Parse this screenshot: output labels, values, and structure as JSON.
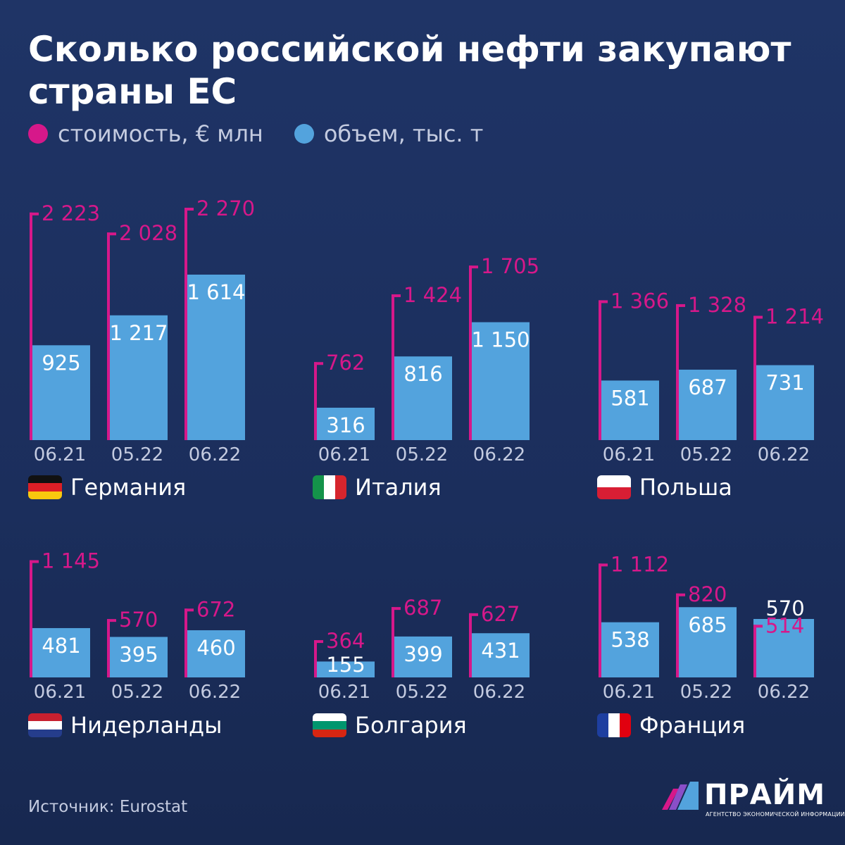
{
  "title": "Сколько российской нефти закупают страны ЕС",
  "legend": {
    "cost_label": "стоимость, € млн",
    "volume_label": "объем, тыс. т"
  },
  "colors": {
    "cost": "#d6188a",
    "volume": "#53a3dd",
    "background": "#1d3160"
  },
  "chart_data": {
    "type": "bar",
    "categories": [
      "06.21",
      "05.22",
      "06.22"
    ],
    "series_names": [
      "стоимость, € млн",
      "объем, тыс. т"
    ],
    "panels": [
      {
        "country": "Германия",
        "flag": "de",
        "cost": [
          2223,
          2028,
          2270
        ],
        "cost_labels": [
          "2 223",
          "2 028",
          "2 270"
        ],
        "volume": [
          925,
          1217,
          1614
        ],
        "volume_labels": [
          "925",
          "1 217",
          "1 614"
        ]
      },
      {
        "country": "Италия",
        "flag": "it",
        "cost": [
          762,
          1424,
          1705
        ],
        "cost_labels": [
          "762",
          "1 424",
          "1 705"
        ],
        "volume": [
          316,
          816,
          1150
        ],
        "volume_labels": [
          "316",
          "816",
          "1 150"
        ]
      },
      {
        "country": "Польша",
        "flag": "pl",
        "cost": [
          1366,
          1328,
          1214
        ],
        "cost_labels": [
          "1 366",
          "1 328",
          "1 214"
        ],
        "volume": [
          581,
          687,
          731
        ],
        "volume_labels": [
          "581",
          "687",
          "731"
        ]
      },
      {
        "country": "Нидерланды",
        "flag": "nl",
        "cost": [
          1145,
          570,
          672
        ],
        "cost_labels": [
          "1 145",
          "570",
          "672"
        ],
        "volume": [
          481,
          395,
          460
        ],
        "volume_labels": [
          "481",
          "395",
          "460"
        ]
      },
      {
        "country": "Болгария",
        "flag": "bg",
        "cost": [
          364,
          687,
          627
        ],
        "cost_labels": [
          "364",
          "687",
          "627"
        ],
        "volume": [
          155,
          399,
          431
        ],
        "volume_labels": [
          "155",
          "399",
          "431"
        ]
      },
      {
        "country": "Франция",
        "flag": "fr",
        "cost": [
          1112,
          820,
          514
        ],
        "cost_labels": [
          "1 112",
          "820",
          "514"
        ],
        "volume": [
          538,
          685,
          570
        ],
        "volume_labels": [
          "538",
          "685",
          "570"
        ]
      }
    ]
  },
  "source": "Источник: Eurostat",
  "logo": {
    "name": "ПРАЙМ",
    "subtitle": "АГЕНТСТВО ЭКОНОМИЧЕСКОЙ ИНФОРМАЦИИ"
  }
}
